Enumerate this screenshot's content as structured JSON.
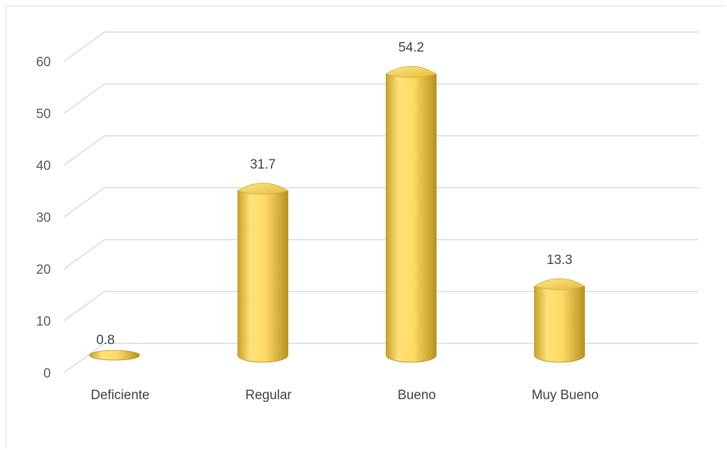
{
  "chart_data": {
    "type": "bar",
    "style": "3d-cylinder",
    "categories": [
      "Deficiente",
      "Regular",
      "Bueno",
      "Muy Bueno"
    ],
    "values": [
      0.8,
      31.7,
      54.2,
      13.3
    ],
    "data_labels": [
      "0.8",
      "31.7",
      "54.2",
      "13.3"
    ],
    "y_ticks": [
      "0",
      "10",
      "20",
      "30",
      "40",
      "50",
      "60"
    ],
    "ylim": [
      0,
      60
    ],
    "grid": true,
    "legend": "none",
    "bar_color": "#ffd966",
    "bar_shade": "#c9a227",
    "grid_color": "#d9d9d9"
  }
}
